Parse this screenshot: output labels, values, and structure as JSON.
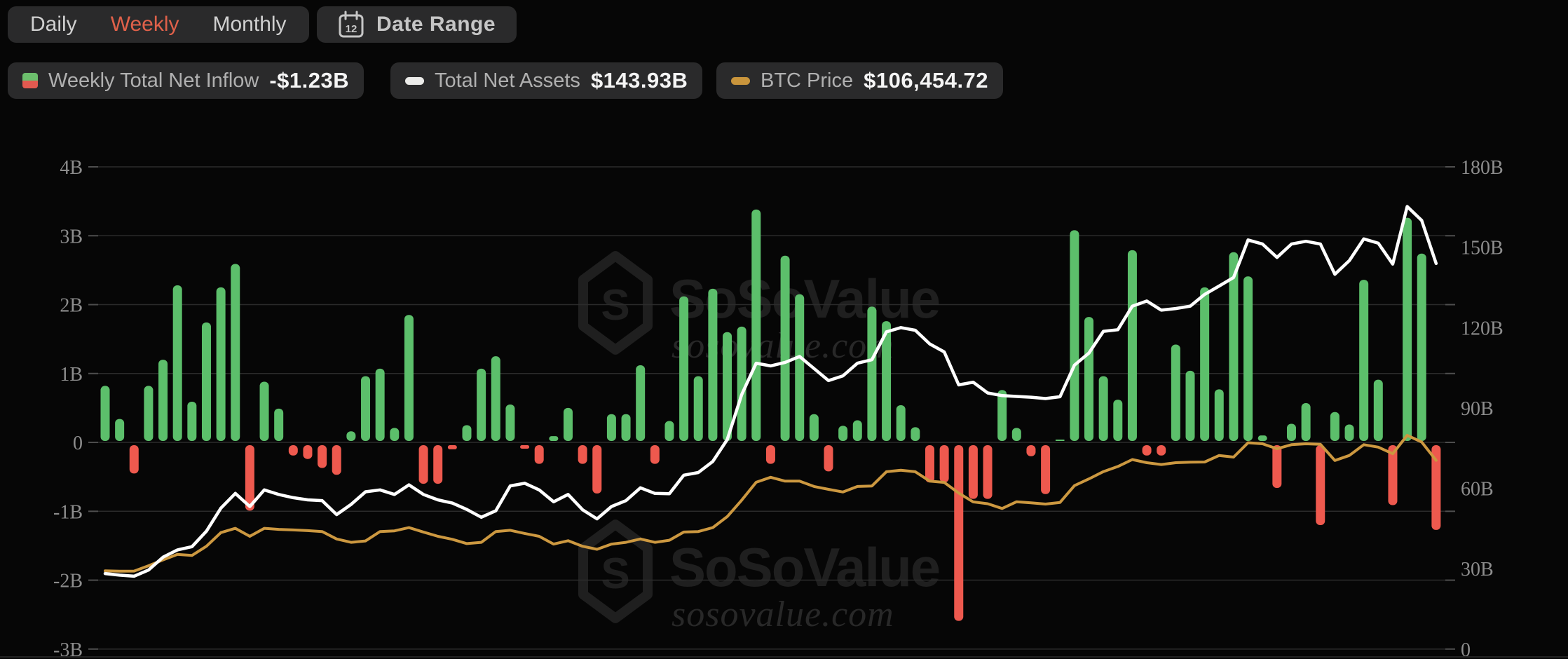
{
  "tabs": {
    "items": [
      {
        "label": "Daily",
        "active": false
      },
      {
        "label": "Weekly",
        "active": true
      },
      {
        "label": "Monthly",
        "active": false
      }
    ]
  },
  "date_range": {
    "label": "Date Range",
    "icon_day": "12"
  },
  "legend": [
    {
      "label": "Weekly Total Net Inflow",
      "value": "-$1.23B",
      "chip": "green-red-square"
    },
    {
      "label": "Total Net Assets",
      "value": "$143.93B",
      "chip": "white-pill"
    },
    {
      "label": "BTC Price",
      "value": "$106,454.72",
      "chip": "gold-pill"
    }
  ],
  "watermark": {
    "brand": "SoSoValue",
    "domain": "sosovalue.com",
    "logo": "cube-s-icon"
  },
  "colors": {
    "background": "#060606",
    "panel": "#2a2a2b",
    "accent_active_tab": "#E0614A",
    "bar_positive": "#5CBF6B",
    "bar_negative": "#EE594E",
    "net_assets_line": "#FFFFFF",
    "btc_price_line": "#CC9840",
    "gridline": "#2b2b2b",
    "tick": "#4e4e4e",
    "axis_label": "#8d8d8d",
    "watermark_brand": "#1f1f1f",
    "watermark_domain": "#282828"
  },
  "chart_data": {
    "type": "bar",
    "title": "Bitcoin ETF Weekly Total Net Inflow vs Total Net Assets and BTC Price",
    "grid": true,
    "legend_position": "top",
    "left_axis": {
      "labels": [
        "4B",
        "3B",
        "2B",
        "1B",
        "0",
        "-1B",
        "-2B",
        "-3B"
      ],
      "max": 4,
      "min": -3,
      "unit": "USD B"
    },
    "right_axis": {
      "labels": [
        "180B",
        "150B",
        "120B",
        "90B",
        "60B",
        "30B",
        "0"
      ],
      "max": 180,
      "min": 0,
      "unit": "USD B"
    },
    "btc_hidden_axis": {
      "min": 0,
      "max": 272000
    },
    "series": [
      {
        "name": "Weekly Total Net Inflow",
        "type": "bar",
        "axis": "left",
        "unit": "B USD",
        "latest": -1.23,
        "values": [
          0.8,
          0.32,
          -0.41,
          0.8,
          1.18,
          2.26,
          0.57,
          1.72,
          2.23,
          2.57,
          -0.95,
          0.86,
          0.47,
          -0.15,
          -0.2,
          -0.33,
          -0.43,
          0.14,
          0.94,
          1.05,
          0.19,
          1.83,
          -0.56,
          -0.56,
          -0.06,
          0.23,
          1.05,
          1.23,
          0.53,
          -0.05,
          -0.27,
          0.07,
          0.48,
          -0.27,
          -0.7,
          0.39,
          0.39,
          1.1,
          -0.27,
          0.29,
          2.1,
          0.94,
          2.21,
          1.58,
          1.66,
          3.36,
          -0.27,
          2.69,
          2.13,
          0.39,
          -0.38,
          0.22,
          0.3,
          1.95,
          1.74,
          0.52,
          0.2,
          -0.54,
          -0.54,
          -2.55,
          -0.78,
          -0.78,
          0.74,
          0.19,
          -0.16,
          -0.71,
          0.02,
          3.06,
          1.8,
          0.94,
          0.6,
          2.77,
          -0.15,
          -0.15,
          1.4,
          1.02,
          2.23,
          0.75,
          2.74,
          2.39,
          0.08,
          -0.62,
          0.25,
          0.55,
          -1.16,
          0.42,
          0.24,
          2.34,
          0.89,
          -0.87,
          3.24,
          2.72,
          -1.23
        ]
      },
      {
        "name": "Total Net Assets",
        "type": "line",
        "axis": "right",
        "unit": "B USD",
        "latest": 143.93,
        "values": [
          28.2,
          27.6,
          27.2,
          29.5,
          34.3,
          37.0,
          38.2,
          44.0,
          52.6,
          58.1,
          53.2,
          59.4,
          57.7,
          56.5,
          55.7,
          55.4,
          50.2,
          54.0,
          58.7,
          59.4,
          57.7,
          61.3,
          57.7,
          55.7,
          54.5,
          52.1,
          49.2,
          51.6,
          60.9,
          61.9,
          59.4,
          55.0,
          57.7,
          52.0,
          48.6,
          53.2,
          55.4,
          60.2,
          58.1,
          58.0,
          64.9,
          65.9,
          70.0,
          78.2,
          95.0,
          106.7,
          105.7,
          107.0,
          109.2,
          104.7,
          100.2,
          102.0,
          106.7,
          108.0,
          118.4,
          120.0,
          119.0,
          113.9,
          110.9,
          98.6,
          99.6,
          95.6,
          94.6,
          94.3,
          94.0,
          93.5,
          94.2,
          106.0,
          110.5,
          118.6,
          119.2,
          128.0,
          129.9,
          126.5,
          127.1,
          128.0,
          132.4,
          135.5,
          138.7,
          152.7,
          151.2,
          146.2,
          151.2,
          152.2,
          151.2,
          139.9,
          145.0,
          153.1,
          151.5,
          143.7,
          165.2,
          160.0,
          143.93
        ]
      },
      {
        "name": "BTC Price",
        "type": "line",
        "axis": "btc_hidden",
        "unit": "USD",
        "latest": 106454.72,
        "values": [
          44100,
          43900,
          44000,
          47000,
          50300,
          53400,
          52800,
          58000,
          65700,
          68100,
          63600,
          68100,
          67500,
          67200,
          66800,
          66300,
          62100,
          60200,
          61000,
          66300,
          66700,
          68500,
          66000,
          63600,
          61900,
          59500,
          60200,
          66300,
          67000,
          65200,
          63600,
          59200,
          61100,
          58000,
          56300,
          59200,
          60200,
          62100,
          60200,
          61400,
          66000,
          66300,
          68500,
          74700,
          84000,
          94100,
          96900,
          94700,
          94700,
          91700,
          90100,
          88600,
          91700,
          92000,
          100000,
          100900,
          100000,
          94700,
          94000,
          88000,
          83000,
          82000,
          79300,
          83100,
          82500,
          81800,
          82700,
          92200,
          96000,
          100100,
          103000,
          106900,
          105100,
          104100,
          105100,
          105400,
          105500,
          109200,
          108300,
          116400,
          115800,
          113000,
          115300,
          115800,
          115500,
          106400,
          109200,
          115300,
          113900,
          110200,
          120600,
          116800,
          106454.72
        ]
      }
    ]
  }
}
